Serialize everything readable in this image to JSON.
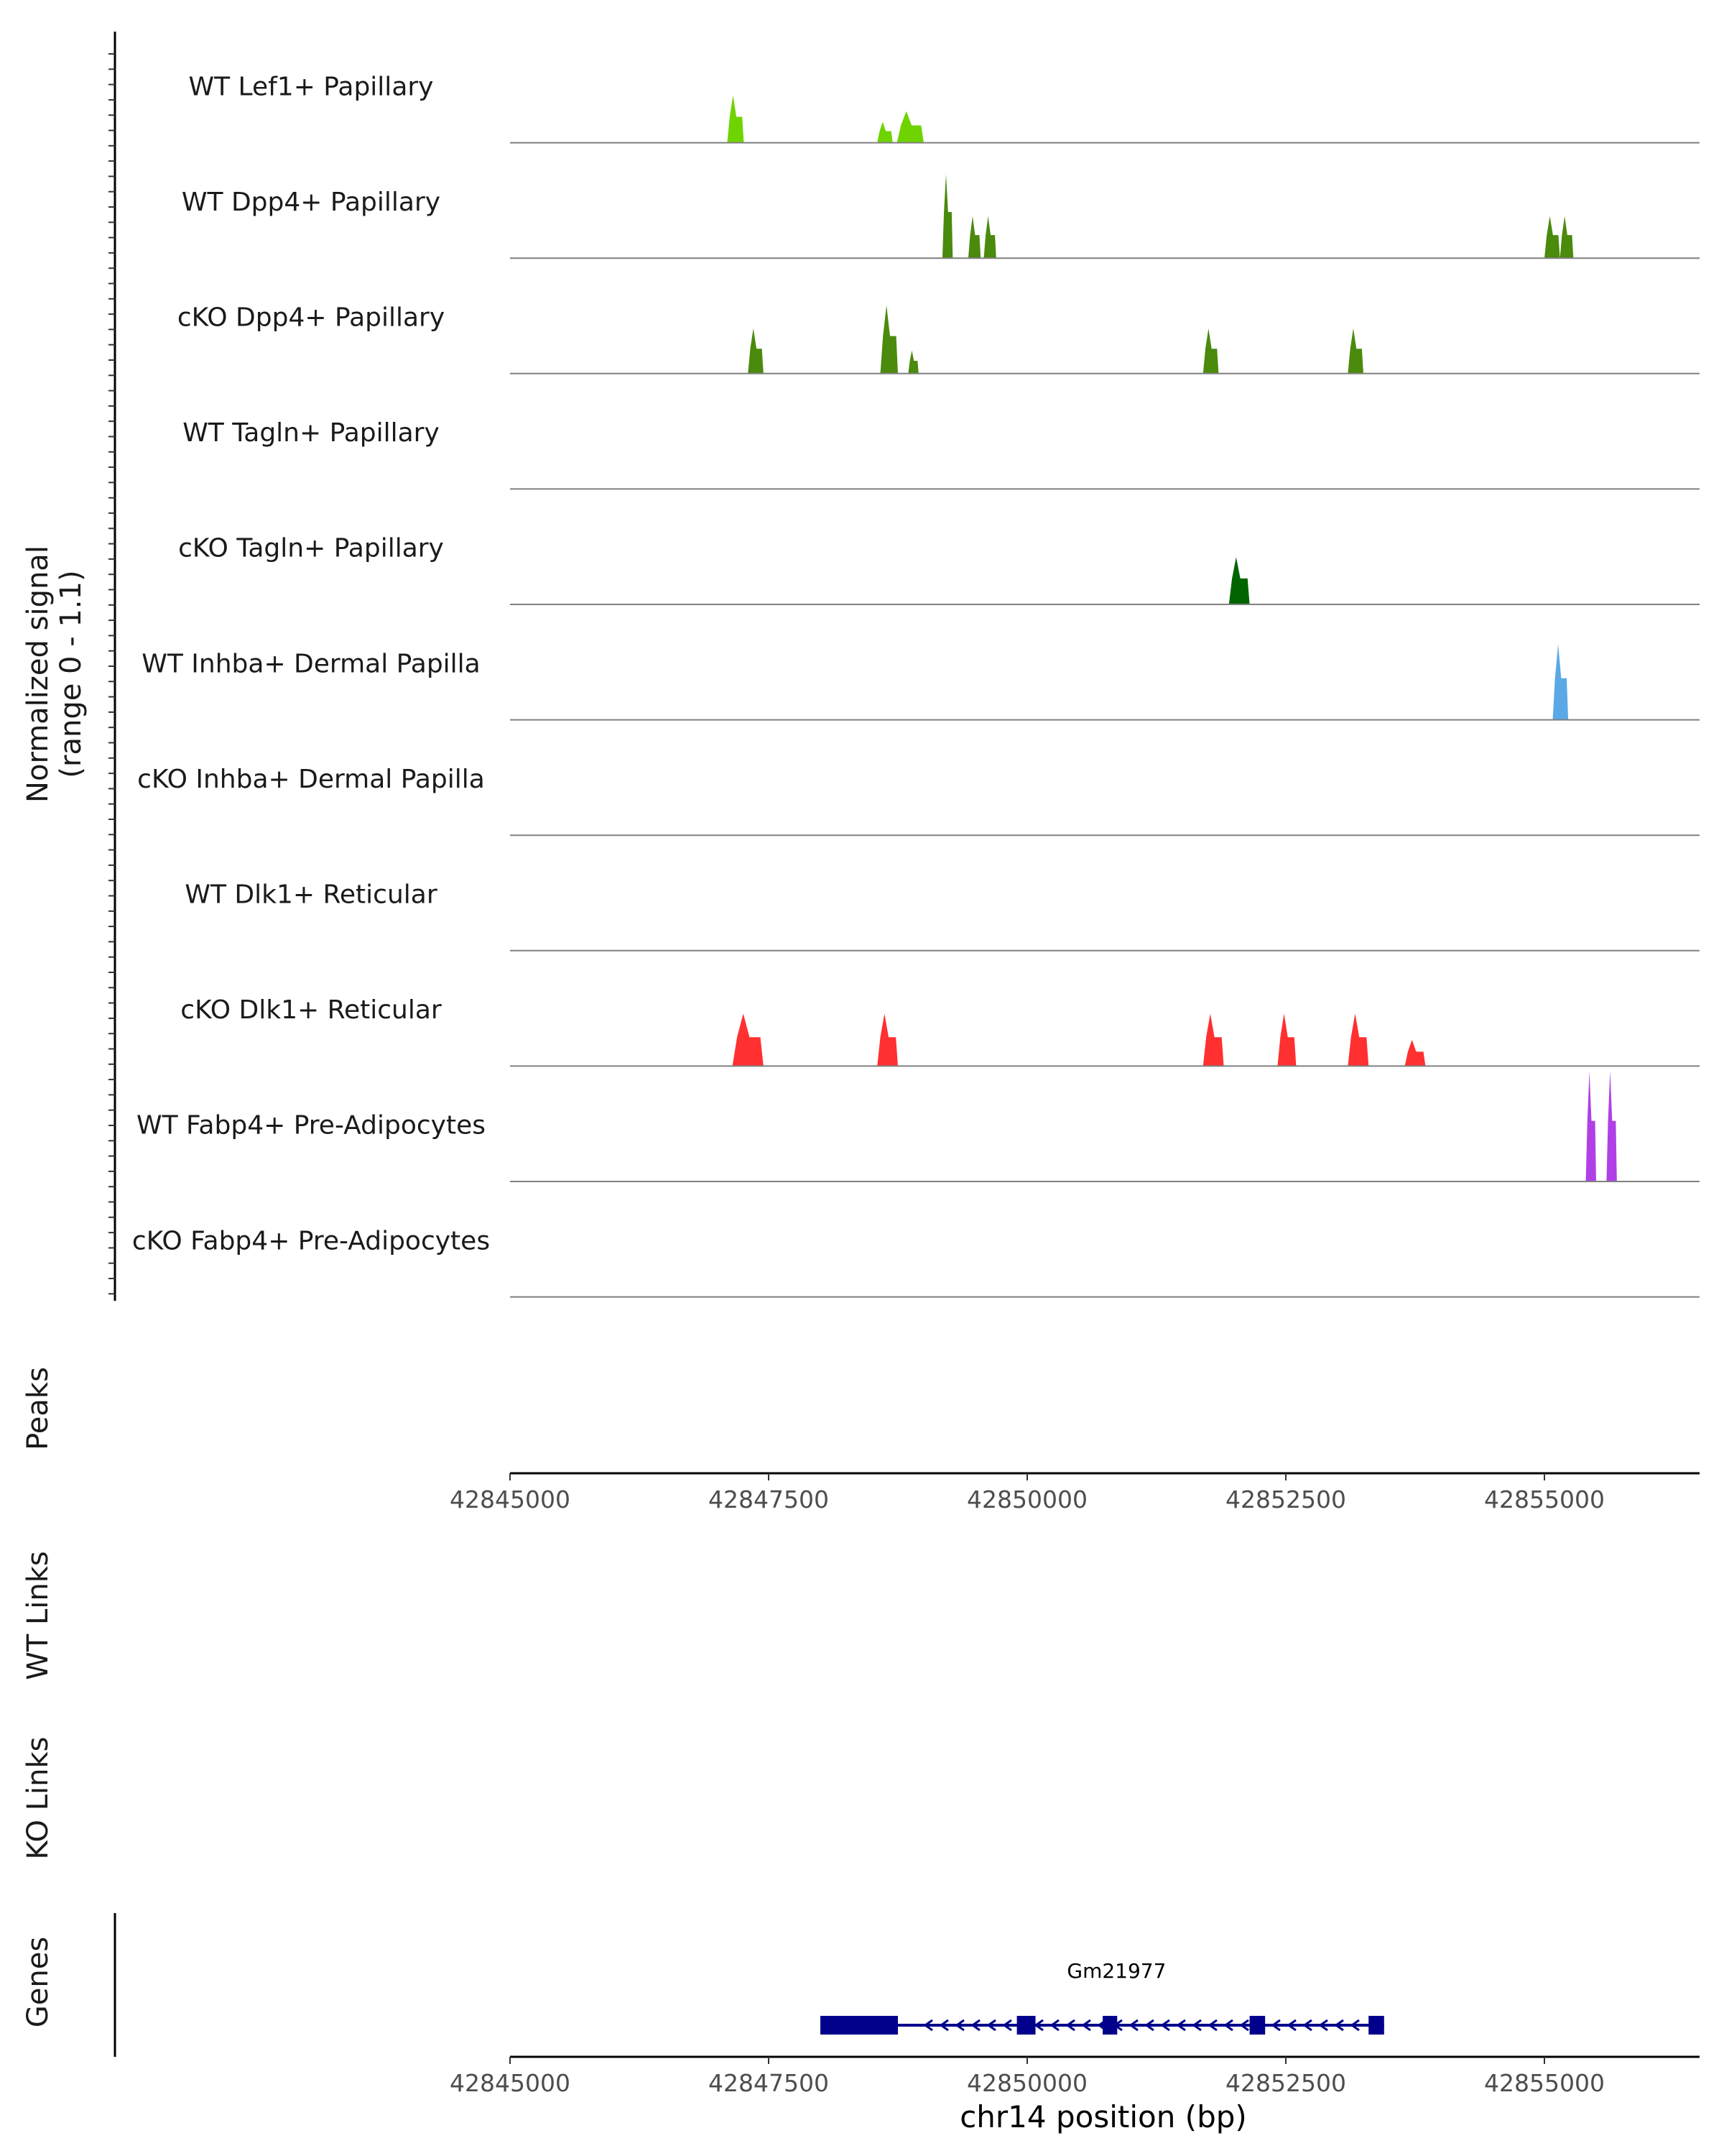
{
  "chart_data": {
    "type": "area",
    "title": "",
    "xlabel": "chr14 position (bp)",
    "ylabel": [
      "Normalized signal",
      "(range 0 - 1.1)"
    ],
    "ylim": [
      0,
      1.1
    ],
    "xlim": [
      42845000,
      42856500
    ],
    "xticks": [
      42845000,
      42847500,
      42850000,
      42852500,
      42855000
    ],
    "xtick_labels": [
      "42845000",
      "42847500",
      "42850000",
      "42852500",
      "42855000"
    ],
    "tracks": [
      {
        "name": "WT Lef1+ Papillary",
        "color": "#6fd300",
        "peaks": [
          {
            "start": 42847100,
            "end": 42847260,
            "max": 0.45
          },
          {
            "start": 42848550,
            "end": 42848700,
            "max": 0.2
          },
          {
            "start": 42848740,
            "end": 42849000,
            "max": 0.3
          }
        ]
      },
      {
        "name": "WT Dpp4+ Papillary",
        "color": "#4a8a0c",
        "peaks": [
          {
            "start": 42849180,
            "end": 42849280,
            "max": 0.8
          },
          {
            "start": 42849430,
            "end": 42849550,
            "max": 0.4
          },
          {
            "start": 42849580,
            "end": 42849700,
            "max": 0.4
          },
          {
            "start": 42855000,
            "end": 42855150,
            "max": 0.4
          },
          {
            "start": 42855150,
            "end": 42855280,
            "max": 0.4
          }
        ]
      },
      {
        "name": "cKO Dpp4+ Papillary",
        "color": "#4a8a0c",
        "peaks": [
          {
            "start": 42847300,
            "end": 42847450,
            "max": 0.43
          },
          {
            "start": 42848580,
            "end": 42848750,
            "max": 0.65
          },
          {
            "start": 42848850,
            "end": 42848950,
            "max": 0.22
          },
          {
            "start": 42851700,
            "end": 42851850,
            "max": 0.43
          },
          {
            "start": 42853100,
            "end": 42853250,
            "max": 0.43
          }
        ]
      },
      {
        "name": "WT Tagln+ Papillary",
        "color": "#006400",
        "peaks": []
      },
      {
        "name": "cKO Tagln+ Papillary",
        "color": "#006400",
        "peaks": [
          {
            "start": 42851950,
            "end": 42852150,
            "max": 0.45
          }
        ]
      },
      {
        "name": "WT Inhba+ Dermal Papilla",
        "color": "#5aa9e6",
        "peaks": [
          {
            "start": 42855080,
            "end": 42855230,
            "max": 0.72
          }
        ]
      },
      {
        "name": "cKO Inhba+ Dermal Papilla",
        "color": "#5aa9e6",
        "peaks": []
      },
      {
        "name": "WT Dlk1+ Reticular",
        "color": "#ff3030",
        "peaks": []
      },
      {
        "name": "cKO Dlk1+ Reticular",
        "color": "#ff3030",
        "peaks": [
          {
            "start": 42847150,
            "end": 42847450,
            "max": 0.5
          },
          {
            "start": 42848550,
            "end": 42848750,
            "max": 0.5
          },
          {
            "start": 42851700,
            "end": 42851900,
            "max": 0.5
          },
          {
            "start": 42852420,
            "end": 42852600,
            "max": 0.5
          },
          {
            "start": 42853100,
            "end": 42853300,
            "max": 0.5
          },
          {
            "start": 42853650,
            "end": 42853850,
            "max": 0.25
          }
        ]
      },
      {
        "name": "WT Fabp4+ Pre-Adipocytes",
        "color": "#b040e6",
        "peaks": [
          {
            "start": 42855400,
            "end": 42855500,
            "max": 1.05
          },
          {
            "start": 42855600,
            "end": 42855700,
            "max": 1.05
          }
        ]
      },
      {
        "name": "cKO Fabp4+ Pre-Adipocytes",
        "color": "#b040e6",
        "peaks": []
      }
    ],
    "panels": [
      "Peaks",
      "WT Links",
      "KO Links",
      "Genes"
    ],
    "gene": {
      "name": "Gm21977",
      "strand": "-",
      "color": "#00008b",
      "start": 42848000,
      "end": 42853450,
      "exons": [
        [
          42848000,
          42848750
        ],
        [
          42849900,
          42850080
        ],
        [
          42850730,
          42850870
        ],
        [
          42852150,
          42852300
        ],
        [
          42853300,
          42853450
        ]
      ]
    }
  }
}
